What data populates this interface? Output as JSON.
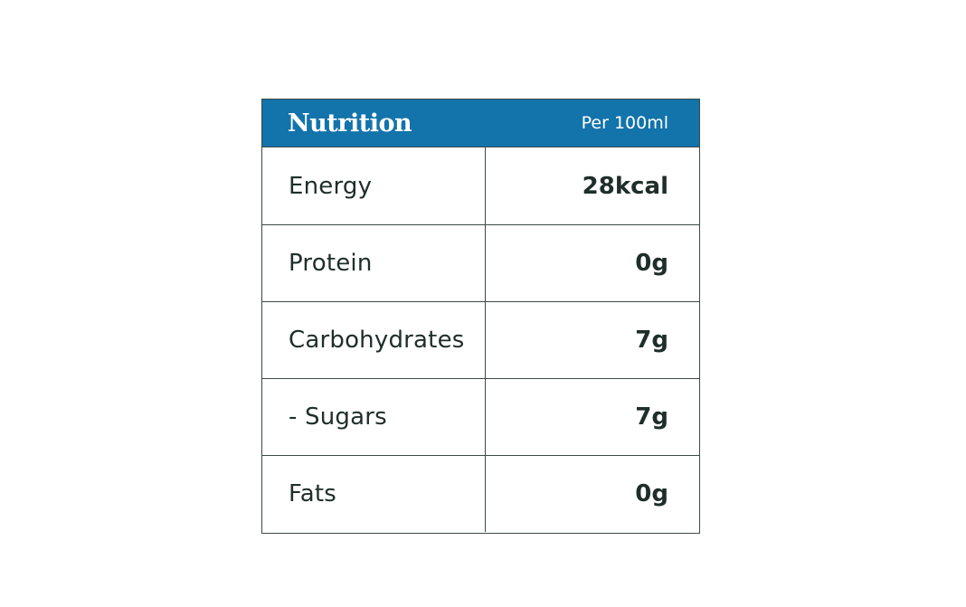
{
  "nutrition": {
    "title": "Nutrition",
    "per_label": "Per 100ml",
    "rows": [
      {
        "label": "Energy",
        "value": "28kcal"
      },
      {
        "label": "Protein",
        "value": "0g"
      },
      {
        "label": "Carbohydrates",
        "value": "7g"
      },
      {
        "label": "- Sugars",
        "value": "7g"
      },
      {
        "label": "Fats",
        "value": "0g"
      }
    ]
  },
  "colors": {
    "header_background": "#1373ab",
    "header_text": "#ffffff",
    "body_text": "#1f2e2a",
    "border": "#3d4a47"
  }
}
